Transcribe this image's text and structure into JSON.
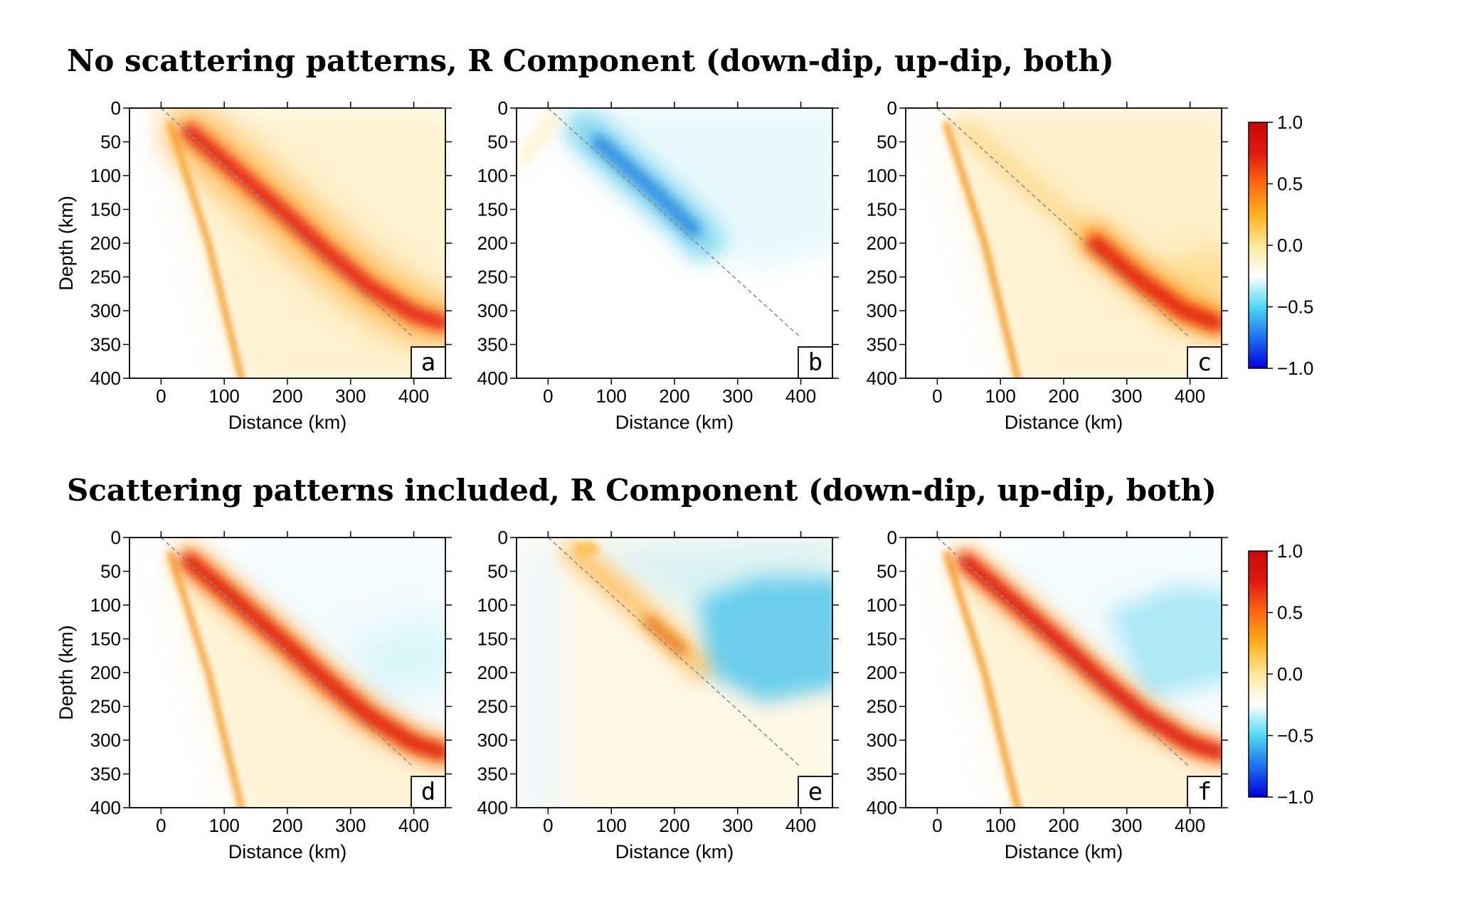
{
  "rows": [
    {
      "title": "No scattering patterns, R Component (down-dip, up-dip, both)"
    },
    {
      "title": "Scattering patterns included, R Component (down-dip, up-dip, both)"
    }
  ],
  "chart_data": [
    {
      "type": "heatmap",
      "panel": "a",
      "scattering": false,
      "case": "down-dip",
      "xlabel": "Distance (km)",
      "ylabel": "Depth (km)",
      "xlim": [
        -50,
        450
      ],
      "ylim": [
        400,
        0
      ],
      "xticks": [
        0,
        100,
        200,
        300,
        400
      ],
      "yticks": [
        0,
        50,
        100,
        150,
        200,
        250,
        300,
        350,
        400
      ],
      "value_range": [
        -1.0,
        1.0
      ],
      "dashed_line": {
        "from": [
          0,
          0
        ],
        "to": [
          400,
          340
        ]
      }
    },
    {
      "type": "heatmap",
      "panel": "b",
      "scattering": false,
      "case": "up-dip",
      "xlabel": "Distance (km)",
      "ylabel": "",
      "xlim": [
        -50,
        450
      ],
      "ylim": [
        400,
        0
      ],
      "xticks": [
        0,
        100,
        200,
        300,
        400
      ],
      "yticks": [
        0,
        50,
        100,
        150,
        200,
        250,
        300,
        350,
        400
      ],
      "value_range": [
        -1.0,
        1.0
      ],
      "dashed_line": {
        "from": [
          0,
          0
        ],
        "to": [
          400,
          340
        ]
      }
    },
    {
      "type": "heatmap",
      "panel": "c",
      "scattering": false,
      "case": "both",
      "xlabel": "Distance (km)",
      "ylabel": "",
      "xlim": [
        -50,
        450
      ],
      "ylim": [
        400,
        0
      ],
      "xticks": [
        0,
        100,
        200,
        300,
        400
      ],
      "yticks": [
        0,
        50,
        100,
        150,
        200,
        250,
        300,
        350,
        400
      ],
      "value_range": [
        -1.0,
        1.0
      ],
      "dashed_line": {
        "from": [
          0,
          0
        ],
        "to": [
          400,
          340
        ]
      }
    },
    {
      "type": "heatmap",
      "panel": "d",
      "scattering": true,
      "case": "down-dip",
      "xlabel": "Distance (km)",
      "ylabel": "Depth (km)",
      "xlim": [
        -50,
        450
      ],
      "ylim": [
        400,
        0
      ],
      "xticks": [
        0,
        100,
        200,
        300,
        400
      ],
      "yticks": [
        0,
        50,
        100,
        150,
        200,
        250,
        300,
        350,
        400
      ],
      "value_range": [
        -1.0,
        1.0
      ],
      "dashed_line": {
        "from": [
          0,
          0
        ],
        "to": [
          400,
          340
        ]
      }
    },
    {
      "type": "heatmap",
      "panel": "e",
      "scattering": true,
      "case": "up-dip",
      "xlabel": "Distance (km)",
      "ylabel": "",
      "xlim": [
        -50,
        450
      ],
      "ylim": [
        400,
        0
      ],
      "xticks": [
        0,
        100,
        200,
        300,
        400
      ],
      "yticks": [
        0,
        50,
        100,
        150,
        200,
        250,
        300,
        350,
        400
      ],
      "value_range": [
        -1.0,
        1.0
      ],
      "dashed_line": {
        "from": [
          0,
          0
        ],
        "to": [
          400,
          340
        ]
      }
    },
    {
      "type": "heatmap",
      "panel": "f",
      "scattering": true,
      "case": "both",
      "xlabel": "Distance (km)",
      "ylabel": "",
      "xlim": [
        -50,
        450
      ],
      "ylim": [
        400,
        0
      ],
      "xticks": [
        0,
        100,
        200,
        300,
        400
      ],
      "yticks": [
        0,
        50,
        100,
        150,
        200,
        250,
        300,
        350,
        400
      ],
      "value_range": [
        -1.0,
        1.0
      ],
      "dashed_line": {
        "from": [
          0,
          0
        ],
        "to": [
          400,
          340
        ]
      }
    }
  ],
  "colorbar": {
    "ticks": [
      1.0,
      0.5,
      0.0,
      -0.5,
      -1.0
    ],
    "tick_labels": [
      "1.0",
      "0.5",
      "0.0",
      "−0.5",
      "−1.0"
    ],
    "colors": [
      "#0000dd",
      "#1e6ff0",
      "#4fd8f0",
      "#ffffff",
      "#ffe79a",
      "#ffb020",
      "#ff6a10",
      "#e01a10",
      "#c80808"
    ]
  }
}
